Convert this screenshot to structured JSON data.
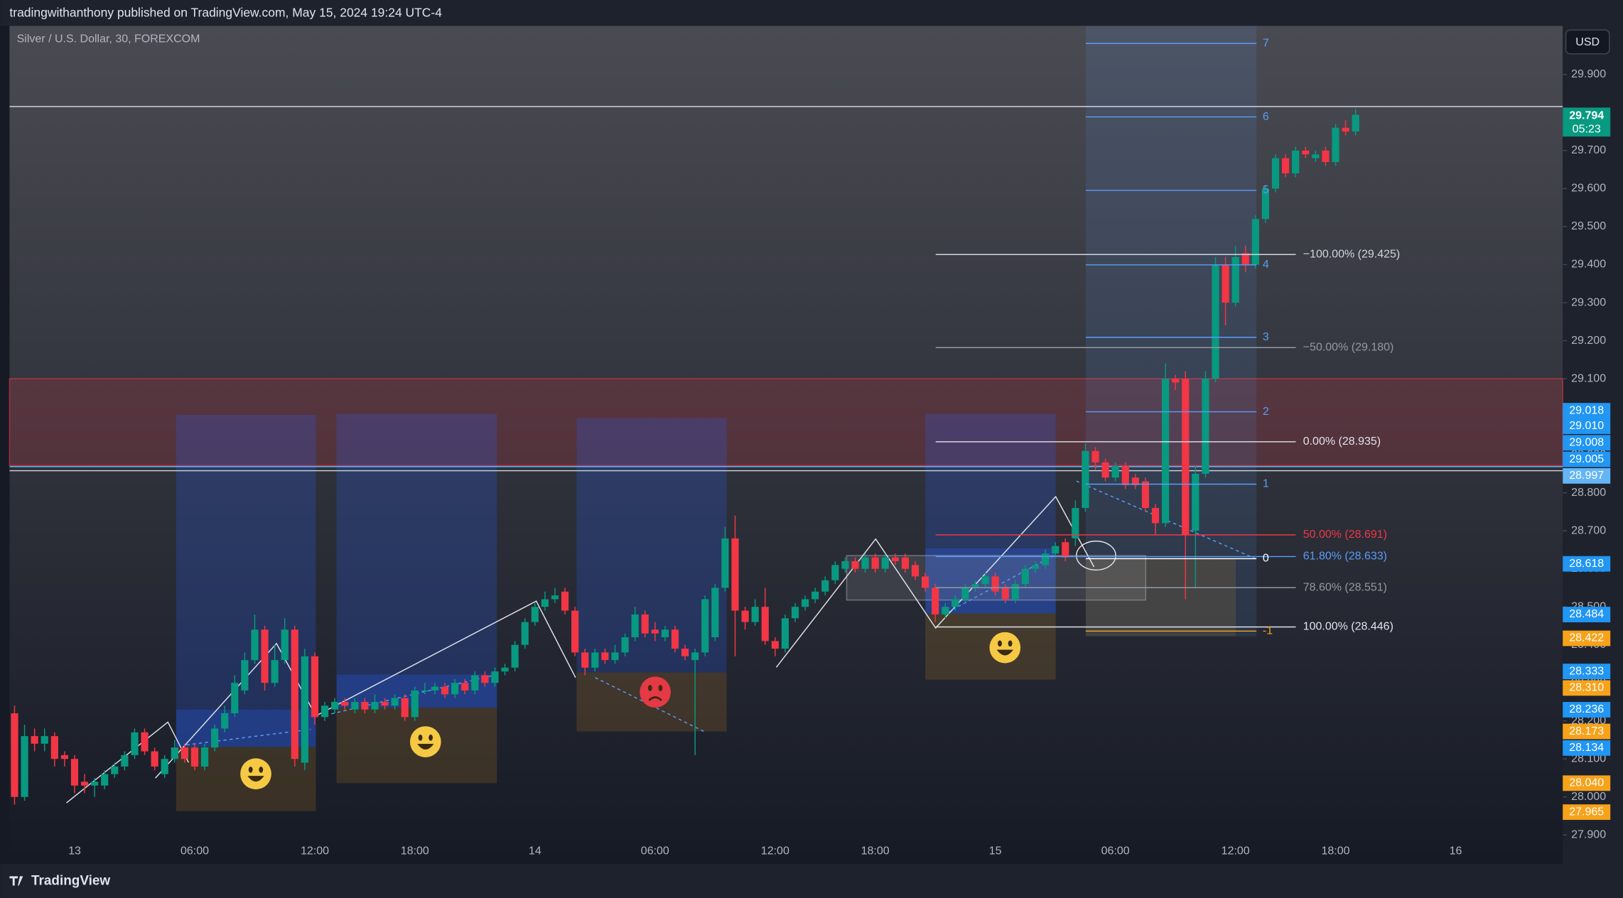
{
  "header": "tradingwithanthony published on TradingView.com, May 15, 2024 19:24 UTC-4",
  "footer": "TradingView",
  "chart_data": {
    "type": "candlestick",
    "title": "Silver / U.S. Dollar, 30, FOREXCOM",
    "currency": "USD",
    "up_color": "#089981",
    "down_color": "#f23645",
    "open": [
      28.22,
      28.0,
      28.16,
      28.14,
      28.16,
      28.11,
      28.1,
      28.04,
      28.03,
      28.03,
      28.06,
      28.08,
      28.11,
      28.17,
      28.12,
      28.06,
      28.1,
      28.13,
      28.13,
      28.08,
      28.13,
      28.18,
      28.22,
      28.28,
      28.36,
      28.44,
      28.3,
      28.36,
      28.44,
      28.09,
      28.37,
      28.21,
      28.23,
      28.25,
      28.23,
      28.25,
      28.23,
      28.25,
      28.24,
      28.26,
      28.21,
      28.28,
      28.28,
      28.29,
      28.27,
      28.3,
      28.28,
      28.32,
      28.3,
      28.33,
      28.34,
      28.4,
      28.46,
      28.5,
      28.52,
      28.54,
      28.49,
      28.38,
      28.34,
      28.38,
      28.36,
      28.38,
      28.42,
      28.48,
      28.44,
      28.42,
      28.44,
      28.39,
      28.36,
      28.38,
      28.42,
      28.55,
      28.68,
      28.49,
      28.46,
      28.5,
      28.41,
      28.39,
      28.47,
      28.5,
      28.52,
      28.54,
      28.57,
      28.6,
      28.62,
      28.6,
      28.63,
      28.6,
      28.63,
      28.63,
      28.61,
      28.58,
      28.55,
      28.48,
      28.5,
      28.52,
      28.55,
      28.56,
      28.58,
      28.55,
      28.52,
      28.56,
      28.6,
      28.61,
      28.64,
      28.67,
      28.68,
      28.76,
      28.91,
      28.88,
      28.84,
      28.87,
      28.84,
      28.83,
      28.76,
      28.72,
      29.1,
      29.1,
      28.7,
      28.85,
      29.1,
      29.4,
      29.3,
      29.43,
      29.4,
      29.52,
      29.6,
      29.68,
      29.64,
      29.7,
      29.68,
      29.7,
      29.67,
      29.76,
      29.75
    ],
    "high": [
      28.24,
      28.19,
      28.18,
      28.18,
      28.17,
      28.12,
      28.11,
      28.06,
      28.05,
      28.07,
      28.09,
      28.12,
      28.18,
      28.18,
      28.13,
      28.11,
      28.15,
      28.14,
      28.14,
      28.14,
      28.19,
      28.24,
      28.32,
      28.38,
      28.48,
      28.45,
      28.4,
      28.47,
      28.45,
      28.39,
      28.38,
      28.25,
      28.26,
      28.26,
      28.26,
      28.26,
      28.27,
      28.26,
      28.27,
      28.27,
      28.29,
      28.3,
      28.3,
      28.3,
      28.31,
      28.31,
      28.33,
      28.33,
      28.34,
      28.35,
      28.41,
      28.47,
      28.51,
      28.54,
      28.55,
      28.55,
      28.5,
      28.39,
      28.39,
      28.39,
      28.4,
      28.43,
      28.5,
      28.49,
      28.46,
      28.45,
      28.45,
      28.4,
      28.39,
      28.53,
      28.56,
      28.71,
      28.74,
      28.5,
      28.52,
      28.55,
      28.42,
      28.48,
      28.51,
      28.53,
      28.55,
      28.58,
      28.62,
      28.63,
      28.63,
      28.64,
      28.64,
      28.64,
      28.64,
      28.64,
      28.62,
      28.59,
      28.56,
      28.51,
      28.53,
      28.56,
      28.57,
      28.59,
      28.59,
      28.56,
      28.57,
      28.61,
      28.62,
      28.65,
      28.67,
      28.68,
      28.78,
      28.93,
      28.92,
      28.89,
      28.88,
      28.88,
      28.85,
      28.84,
      28.77,
      29.14,
      29.11,
      29.12,
      28.87,
      29.12,
      29.42,
      29.42,
      29.45,
      29.45,
      29.53,
      29.61,
      29.69,
      29.69,
      29.71,
      29.71,
      29.7,
      29.71,
      29.77,
      29.78,
      29.81
    ],
    "low": [
      27.98,
      27.99,
      28.12,
      28.12,
      28.08,
      28.08,
      28.01,
      28.01,
      28.0,
      28.02,
      28.05,
      28.07,
      28.1,
      28.11,
      28.07,
      28.05,
      28.09,
      28.09,
      28.07,
      28.07,
      28.12,
      28.17,
      28.21,
      28.27,
      28.35,
      28.28,
      28.29,
      28.35,
      28.08,
      28.07,
      28.19,
      28.2,
      28.22,
      28.23,
      28.22,
      28.22,
      28.22,
      28.23,
      28.23,
      28.2,
      28.2,
      28.27,
      28.27,
      28.26,
      28.26,
      28.27,
      28.27,
      28.29,
      28.29,
      28.32,
      28.33,
      28.39,
      28.45,
      28.49,
      28.51,
      28.48,
      28.37,
      28.32,
      28.33,
      28.35,
      28.35,
      28.37,
      28.41,
      28.42,
      28.41,
      28.41,
      28.38,
      28.36,
      28.11,
      28.37,
      28.41,
      28.54,
      28.37,
      28.44,
      28.45,
      28.4,
      28.37,
      28.38,
      28.46,
      28.49,
      28.51,
      28.53,
      28.56,
      28.59,
      28.59,
      28.59,
      28.59,
      28.59,
      28.61,
      28.59,
      28.57,
      28.54,
      28.46,
      28.47,
      28.49,
      28.51,
      28.54,
      28.55,
      28.53,
      28.51,
      28.51,
      28.55,
      28.59,
      28.6,
      28.63,
      28.62,
      28.66,
      28.75,
      28.86,
      28.83,
      28.83,
      28.81,
      28.81,
      28.75,
      28.69,
      28.71,
      29.07,
      28.52,
      28.55,
      28.84,
      29.09,
      29.24,
      29.29,
      29.38,
      29.39,
      29.51,
      29.59,
      29.63,
      29.63,
      29.68,
      29.67,
      29.66,
      29.66,
      29.74,
      29.74
    ],
    "close": [
      28.0,
      28.16,
      28.14,
      28.16,
      28.1,
      28.1,
      28.03,
      28.03,
      28.04,
      28.06,
      28.08,
      28.11,
      28.17,
      28.12,
      28.08,
      28.1,
      28.13,
      28.1,
      28.08,
      28.13,
      28.18,
      28.22,
      28.3,
      28.36,
      28.44,
      28.3,
      28.36,
      28.44,
      28.1,
      28.37,
      28.21,
      28.24,
      28.25,
      28.24,
      28.25,
      28.23,
      28.25,
      28.24,
      28.26,
      28.21,
      28.28,
      28.28,
      28.29,
      28.27,
      28.3,
      28.28,
      28.32,
      28.3,
      28.33,
      28.34,
      28.4,
      28.46,
      28.5,
      28.52,
      28.53,
      28.49,
      28.38,
      28.34,
      28.38,
      28.36,
      28.38,
      28.42,
      28.48,
      28.43,
      28.43,
      28.44,
      28.39,
      28.37,
      28.38,
      28.52,
      28.55,
      28.68,
      28.49,
      28.46,
      28.5,
      28.41,
      28.39,
      28.47,
      28.5,
      28.52,
      28.54,
      28.57,
      28.61,
      28.62,
      28.6,
      28.63,
      28.6,
      28.63,
      28.62,
      28.6,
      28.58,
      28.55,
      28.48,
      28.5,
      28.52,
      28.55,
      28.56,
      28.58,
      28.54,
      28.52,
      28.56,
      28.6,
      28.61,
      28.64,
      28.66,
      28.63,
      28.76,
      28.91,
      28.88,
      28.84,
      28.87,
      28.82,
      28.82,
      28.76,
      28.72,
      29.1,
      29.09,
      28.69,
      28.85,
      29.1,
      29.4,
      29.3,
      29.42,
      29.4,
      29.52,
      29.6,
      29.68,
      29.64,
      29.7,
      29.69,
      29.69,
      29.67,
      29.76,
      29.75,
      29.794
    ],
    "xlim": [
      -0.5,
      154.7
    ],
    "xticks": [
      {
        "value": 6,
        "label": "13"
      },
      {
        "value": 18,
        "label": "06:00"
      },
      {
        "value": 30,
        "label": "12:00"
      },
      {
        "value": 40,
        "label": "18:00"
      },
      {
        "value": 52,
        "label": "14"
      },
      {
        "value": 64,
        "label": "06:00"
      },
      {
        "value": 76,
        "label": "12:00"
      },
      {
        "value": 86,
        "label": "18:00"
      },
      {
        "value": 98,
        "label": "15"
      },
      {
        "value": 110,
        "label": "06:00"
      },
      {
        "value": 122,
        "label": "12:00"
      },
      {
        "value": 132,
        "label": "18:00"
      },
      {
        "value": 144,
        "label": "16"
      }
    ],
    "ylim": [
      27.824,
      30.028
    ],
    "yticks": [
      {
        "value": 27.9,
        "label": "27.900"
      },
      {
        "value": 28.0,
        "label": "28.000"
      },
      {
        "value": 28.1,
        "label": "28.100"
      },
      {
        "value": 28.2,
        "label": "28.200"
      },
      {
        "value": 28.3,
        "label": "28.300"
      },
      {
        "value": 28.4,
        "label": "28.400"
      },
      {
        "value": 28.5,
        "label": "28.500"
      },
      {
        "value": 28.6,
        "label": "28.600"
      },
      {
        "value": 28.7,
        "label": "28.700"
      },
      {
        "value": 28.8,
        "label": "28.800"
      },
      {
        "value": 28.9,
        "label": "28.900"
      },
      {
        "value": 29.0,
        "label": "29.000"
      },
      {
        "value": 29.1,
        "label": "29.100"
      },
      {
        "value": 29.2,
        "label": "29.200"
      },
      {
        "value": 29.3,
        "label": "29.300"
      },
      {
        "value": 29.4,
        "label": "29.400"
      },
      {
        "value": 29.5,
        "label": "29.500"
      },
      {
        "value": 29.6,
        "label": "29.600"
      },
      {
        "value": 29.7,
        "label": "29.700"
      },
      {
        "value": 29.8,
        "label": "29.800"
      },
      {
        "value": 29.9,
        "label": "29.900"
      }
    ],
    "fib_retracement": [
      {
        "label": "−100.00% (29.425)",
        "color": "#d1d4dc"
      },
      {
        "label": "−50.00% (29.180)",
        "color": "#9598a1"
      },
      {
        "label": "0.00% (28.935)",
        "color": "#e0e3eb"
      },
      {
        "label": "50.00% (28.691)",
        "color": "#f23645"
      },
      {
        "label": "61.80% (28.633)",
        "color": "#5b9cf6"
      },
      {
        "label": "78.60% (28.551)",
        "color": "#9598a1"
      },
      {
        "label": "100.00% (28.446)",
        "color": "#e0e3eb"
      }
    ],
    "fib_extension": [
      {
        "label": "7",
        "color": "#5b9cf6"
      },
      {
        "label": "6",
        "color": "#5b9cf6"
      },
      {
        "label": "5",
        "color": "#5b9cf6"
      },
      {
        "label": "4",
        "color": "#5b9cf6"
      },
      {
        "label": "3",
        "color": "#5b9cf6"
      },
      {
        "label": "2",
        "color": "#5b9cf6"
      },
      {
        "label": "1",
        "color": "#5b9cf6"
      },
      {
        "label": "0",
        "color": "#ffffff"
      },
      {
        "label": "-1",
        "color": "#f7a21b"
      }
    ],
    "last_price": {
      "text": "29.794",
      "countdown": "05:23",
      "color": "#089981"
    },
    "price_labels": [
      {
        "text": "29.018",
        "color": "#2196f3"
      },
      {
        "text": "29.010",
        "color": "#2196f3"
      },
      {
        "text": "29.008",
        "color": "#2196f3"
      },
      {
        "text": "29.005",
        "color": "#2196f3"
      },
      {
        "text": "28.997",
        "color": "#64b5f6"
      },
      {
        "text": "28.618",
        "color": "#2196f3"
      },
      {
        "text": "28.484",
        "color": "#2196f3"
      },
      {
        "text": "28.422",
        "color": "#f7a21b"
      },
      {
        "text": "28.333",
        "color": "#2196f3"
      },
      {
        "text": "28.310",
        "color": "#f7a21b"
      },
      {
        "text": "28.236",
        "color": "#2196f3"
      },
      {
        "text": "28.173",
        "color": "#f7a21b"
      },
      {
        "text": "28.134",
        "color": "#2196f3"
      },
      {
        "text": "28.040",
        "color": "#f7a21b"
      },
      {
        "text": "27.965",
        "color": "#f7a21b"
      }
    ]
  }
}
